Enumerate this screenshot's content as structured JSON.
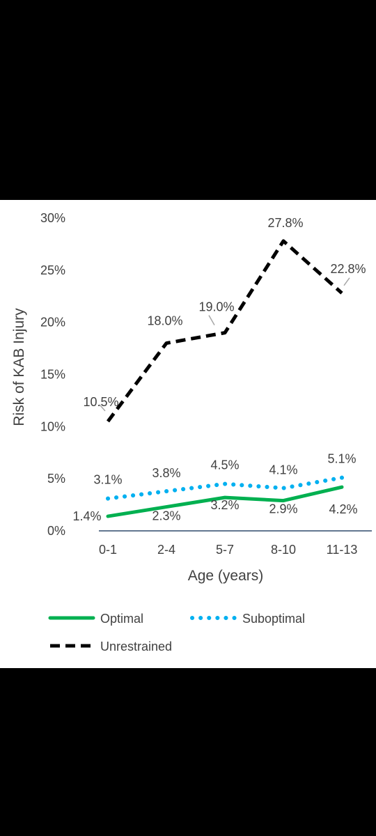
{
  "chart_data": {
    "type": "line",
    "ylabel": "Risk of KAB Injury",
    "xlabel": "Age (years)",
    "categories": [
      "0-1",
      "2-4",
      "5-7",
      "8-10",
      "11-13"
    ],
    "ylim": [
      0,
      30
    ],
    "y_ticks": [
      "0%",
      "5%",
      "10%",
      "15%",
      "20%",
      "25%",
      "30%"
    ],
    "grid": false,
    "legend_position": "bottom",
    "series": [
      {
        "name": "Optimal",
        "values": [
          1.4,
          2.3,
          3.2,
          2.9,
          4.2
        ],
        "labels": [
          "1.4%",
          "2.3%",
          "3.2%",
          "2.9%",
          "4.2%"
        ],
        "color": "#00B050",
        "style": "solid"
      },
      {
        "name": "Suboptimal",
        "values": [
          3.1,
          3.8,
          4.5,
          4.1,
          5.1
        ],
        "labels": [
          "3.1%",
          "3.8%",
          "4.5%",
          "4.1%",
          "5.1%"
        ],
        "color": "#00B0F0",
        "style": "dotted"
      },
      {
        "name": "Unrestrained",
        "values": [
          10.5,
          18.0,
          19.0,
          27.8,
          22.8
        ],
        "labels": [
          "10.5%",
          "18.0%",
          "19.0%",
          "27.8%",
          "22.8%"
        ],
        "color": "#000000",
        "style": "dashed"
      }
    ]
  }
}
